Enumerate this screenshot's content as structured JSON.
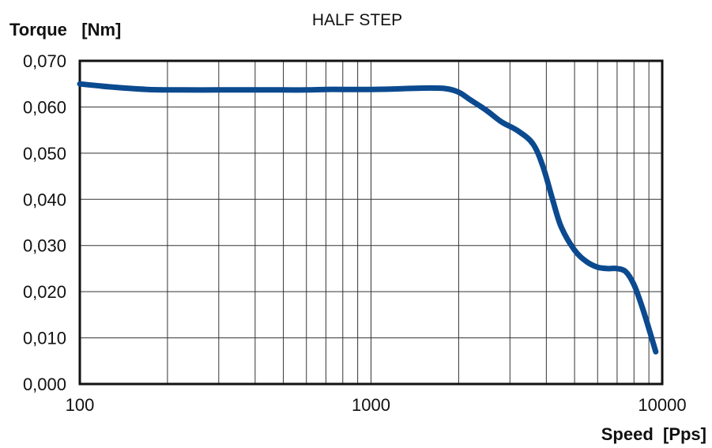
{
  "chart_data": {
    "type": "line",
    "title": "HALF STEP",
    "ylabel": "Torque   [Nm]",
    "xlabel": "Speed  [Pps]",
    "xscale": "log",
    "xlim": [
      100,
      10000
    ],
    "ylim": [
      0,
      0.07
    ],
    "grid": true,
    "line_color": "#0b4a8f",
    "x_ticks": [
      {
        "value": 100,
        "label": "100"
      },
      {
        "value": 1000,
        "label": "1000"
      },
      {
        "value": 10000,
        "label": "10000"
      }
    ],
    "y_ticks": [
      {
        "value": 0.0,
        "label": "0,000"
      },
      {
        "value": 0.01,
        "label": "0,010"
      },
      {
        "value": 0.02,
        "label": "0,020"
      },
      {
        "value": 0.03,
        "label": "0,030"
      },
      {
        "value": 0.04,
        "label": "0,040"
      },
      {
        "value": 0.05,
        "label": "0,050"
      },
      {
        "value": 0.06,
        "label": "0,060"
      },
      {
        "value": 0.07,
        "label": "0,070"
      }
    ],
    "series": [
      {
        "x": [
          100,
          130,
          170,
          220,
          300,
          400,
          500,
          600,
          700,
          800,
          1000,
          1200,
          1500,
          1800,
          2000,
          2200,
          2500,
          2800,
          3200,
          3600,
          3900,
          4200,
          4500,
          5000,
          5500,
          6000,
          6500,
          7000,
          7500,
          8000,
          8500,
          9000,
          9500
        ],
        "y": [
          0.065,
          0.0643,
          0.0638,
          0.0637,
          0.0637,
          0.0637,
          0.0637,
          0.0637,
          0.0638,
          0.0638,
          0.0638,
          0.0639,
          0.0641,
          0.064,
          0.0632,
          0.0615,
          0.0592,
          0.0568,
          0.0548,
          0.052,
          0.047,
          0.04,
          0.034,
          0.029,
          0.0265,
          0.0253,
          0.025,
          0.025,
          0.0243,
          0.0215,
          0.017,
          0.012,
          0.007
        ]
      }
    ]
  }
}
